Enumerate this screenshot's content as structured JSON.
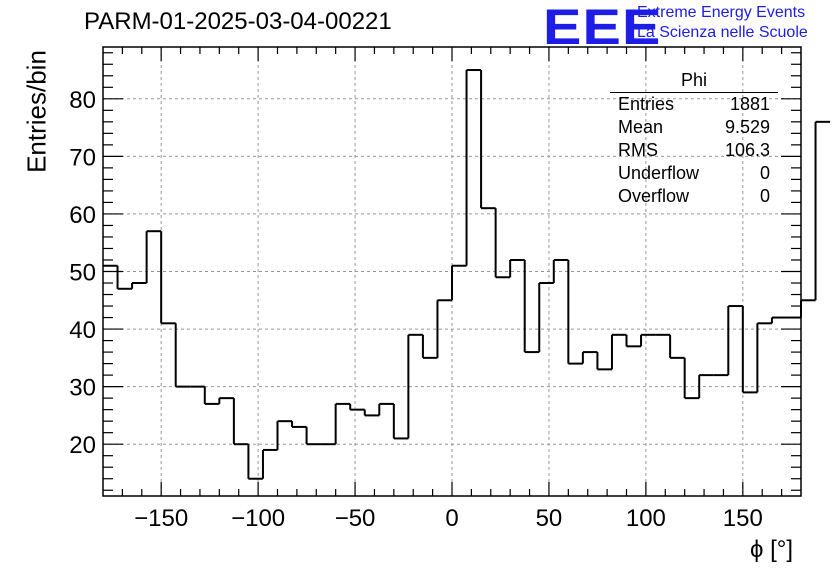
{
  "chart_data": {
    "type": "histogram",
    "title": "PARM-01-2025-03-04-00221",
    "xlabel": "ϕ [°]",
    "ylabel": "Entries/bin",
    "xlim": [
      -180,
      180
    ],
    "ylim": [
      11,
      89
    ],
    "bin_edges_start": -180,
    "bin_width": 7.5,
    "counts": [
      51,
      47,
      48,
      57,
      41,
      30,
      30,
      27,
      28,
      20,
      14,
      19,
      24,
      23,
      20,
      20,
      27,
      26,
      25,
      27,
      21,
      39,
      35,
      45,
      51,
      85,
      61,
      49,
      52,
      36,
      48,
      52,
      34,
      36,
      33,
      39,
      37,
      39,
      39,
      35,
      28,
      32,
      32,
      44,
      29,
      41,
      42,
      42,
      45,
      76
    ],
    "x_ticks": [
      -150,
      -100,
      -50,
      0,
      50,
      100,
      150
    ],
    "x_tick_labels": [
      "−150",
      "−100",
      "−50",
      "0",
      "50",
      "100",
      "150"
    ],
    "y_ticks": [
      20,
      30,
      40,
      50,
      60,
      70,
      80
    ],
    "y_tick_labels": [
      "20",
      "30",
      "40",
      "50",
      "60",
      "70",
      "80"
    ],
    "grid": true,
    "stats_box": {
      "title": "Phi",
      "rows": [
        {
          "label": "Entries",
          "value": "1881"
        },
        {
          "label": "Mean",
          "value": "9.529"
        },
        {
          "label": "RMS",
          "value": "106.3"
        },
        {
          "label": "Underflow",
          "value": "0"
        },
        {
          "label": "Overflow",
          "value": "0"
        }
      ]
    }
  },
  "logo": {
    "mark": "EEE",
    "line1": "Extreme Energy Events",
    "line2": "La Scienza nelle Scuole",
    "color": "#1d1de6"
  }
}
